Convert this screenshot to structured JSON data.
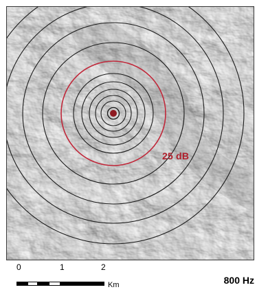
{
  "map": {
    "contour_label": "25 dB",
    "contour_label_color": "#b01e2b",
    "highlighted_contour_color": "#c0283a",
    "source_marker_color": "#8e1b22",
    "contour_line_color": "#1a1a1a",
    "terrain_base_color": "#c8c8c8"
  },
  "scalebar": {
    "ticks": [
      "0",
      "1",
      "2"
    ],
    "unit": "Km",
    "segment_colors": [
      "#000000",
      "#ffffff",
      "#000000",
      "#ffffff",
      "#000000"
    ]
  },
  "frequency_label": "800 Hz"
}
